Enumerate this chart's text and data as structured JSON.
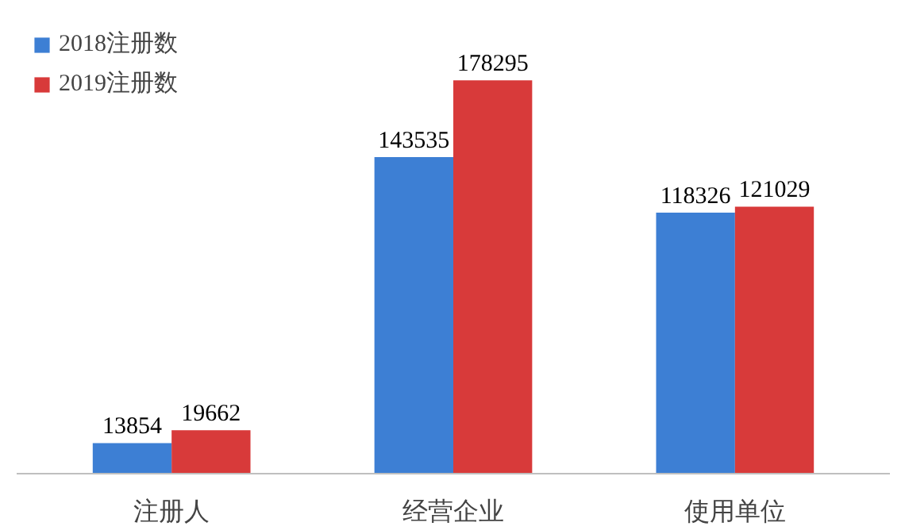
{
  "chart_data": {
    "type": "bar",
    "categories": [
      "注册人",
      "经营企业",
      "使用单位"
    ],
    "series": [
      {
        "name": "2018注册数",
        "color": "#3d7fd4",
        "values": [
          13854,
          143535,
          118326
        ]
      },
      {
        "name": "2019注册数",
        "color": "#d83a3a",
        "values": [
          19662,
          178295,
          121029
        ]
      }
    ],
    "data_labels": true,
    "legend": "top left",
    "grid": false
  }
}
